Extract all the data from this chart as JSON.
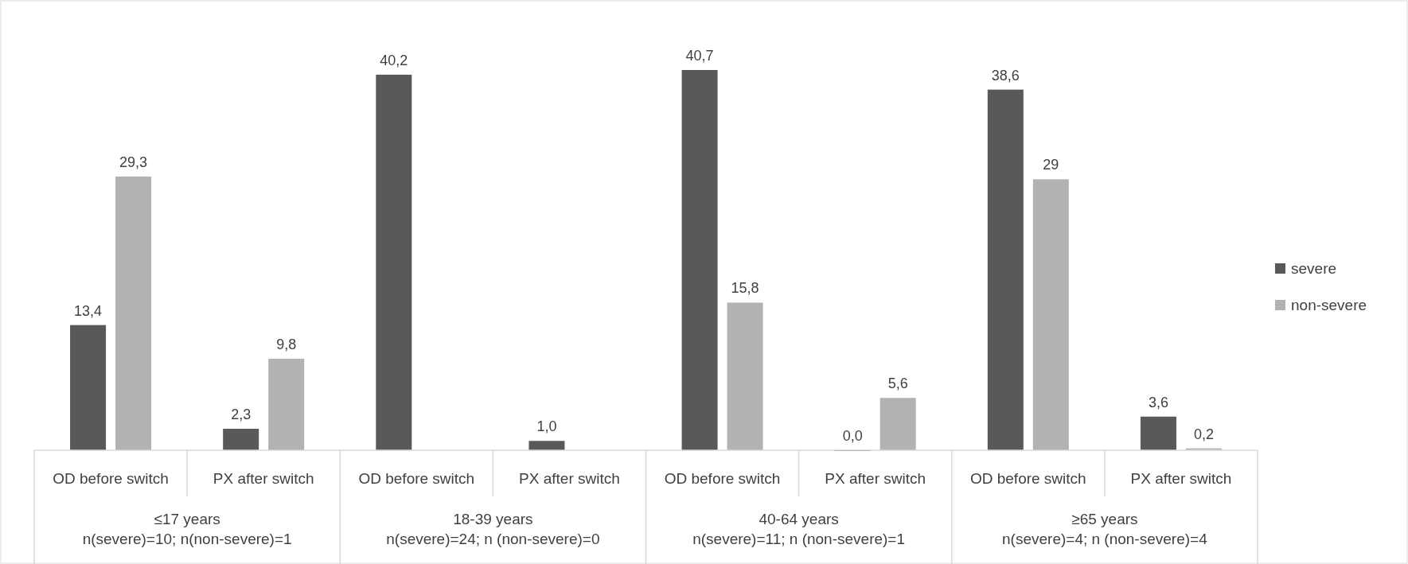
{
  "chart_data": {
    "type": "bar",
    "categories": [
      "OD before switch",
      "PX after switch",
      "OD before switch",
      "PX after switch",
      "OD before switch",
      "PX after switch",
      "OD before switch",
      "PX after switch"
    ],
    "series": [
      {
        "name": "severe",
        "color": "#595959",
        "values": [
          13.4,
          2.3,
          40.2,
          1.0,
          40.7,
          0.0,
          38.6,
          3.6
        ],
        "value_labels": [
          "13,4",
          "2,3",
          "40,2",
          "1,0",
          "40,7",
          "0,0",
          "38,6",
          "3,6"
        ]
      },
      {
        "name": "non-severe",
        "color": "#b2b2b2",
        "values": [
          29.3,
          9.8,
          null,
          null,
          15.8,
          5.6,
          29,
          0.2
        ],
        "value_labels": [
          "29,3",
          "9,8",
          null,
          null,
          "15,8",
          "5,6",
          "29",
          "0,2"
        ]
      }
    ],
    "annotations": [
      "≤17 years\nn(severe)=10; n(non-severe)=1",
      "18-39 years\nn(severe)=24; n (non-severe)=0",
      "40-64 years\nn(severe)=11; n (non-severe)=1",
      "≥65 years\nn(severe)=4; n (non-severe)=4"
    ],
    "legend": "right"
  }
}
